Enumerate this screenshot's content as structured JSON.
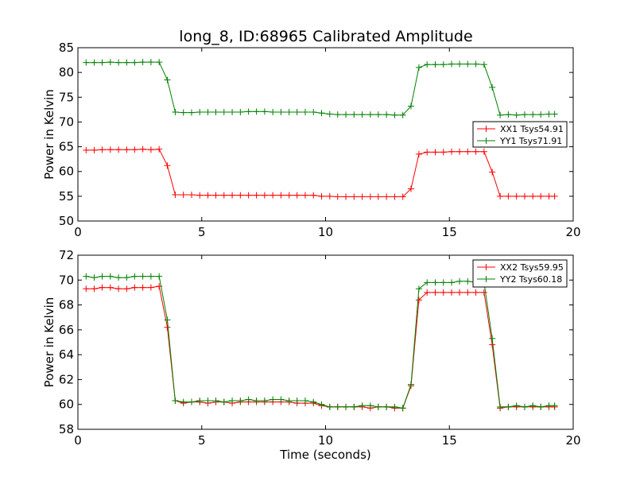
{
  "figure": {
    "title": "long_8, ID:68965 Calibrated Amplitude"
  },
  "chart_data": [
    {
      "type": "line",
      "title": "long_8, ID:68965 Calibrated Amplitude",
      "xlabel": "",
      "ylabel": "Power in Kelvin",
      "xlim": [
        0,
        20
      ],
      "ylim": [
        50,
        85
      ],
      "xticks": [
        "0",
        "5",
        "10",
        "15",
        "20"
      ],
      "yticks": [
        "50",
        "55",
        "60",
        "65",
        "70",
        "75",
        "80",
        "85"
      ],
      "legend_position": "center-right",
      "grid": false,
      "x": [
        0.33,
        0.66,
        0.98,
        1.31,
        1.64,
        1.97,
        2.29,
        2.62,
        2.95,
        3.28,
        3.61,
        3.93,
        4.26,
        4.59,
        4.92,
        5.25,
        5.57,
        5.9,
        6.23,
        6.56,
        6.89,
        7.21,
        7.54,
        7.87,
        8.2,
        8.53,
        8.85,
        9.18,
        9.51,
        9.84,
        10.17,
        10.49,
        10.82,
        11.15,
        11.48,
        11.81,
        12.13,
        12.46,
        12.79,
        13.12,
        13.45,
        13.77,
        14.1,
        14.43,
        14.76,
        15.09,
        15.41,
        15.74,
        16.07,
        16.4,
        16.73,
        17.05,
        17.38,
        17.71,
        18.04,
        18.37,
        18.69,
        19.02,
        19.25
      ],
      "series": [
        {
          "name": "XX1 Tsys54.91",
          "color": "#ff0000",
          "values": [
            64.3,
            64.3,
            64.4,
            64.4,
            64.4,
            64.4,
            64.4,
            64.5,
            64.4,
            64.5,
            61.2,
            55.3,
            55.3,
            55.3,
            55.2,
            55.2,
            55.2,
            55.2,
            55.2,
            55.2,
            55.2,
            55.2,
            55.2,
            55.2,
            55.2,
            55.2,
            55.2,
            55.2,
            55.2,
            55.0,
            55.0,
            54.9,
            54.9,
            54.9,
            54.9,
            54.9,
            54.9,
            54.9,
            54.9,
            54.9,
            56.5,
            63.5,
            63.9,
            63.9,
            63.9,
            64.0,
            64.0,
            64.0,
            64.0,
            64.0,
            59.9,
            55.0,
            55.0,
            55.0,
            55.0,
            55.0,
            55.0,
            55.0,
            55.0
          ]
        },
        {
          "name": "YY1 Tsys71.91",
          "color": "#008000",
          "values": [
            82.0,
            82.0,
            82.0,
            82.1,
            82.0,
            82.0,
            82.0,
            82.1,
            82.1,
            82.1,
            78.5,
            72.0,
            71.9,
            71.9,
            72.0,
            72.0,
            72.0,
            72.0,
            72.0,
            72.0,
            72.1,
            72.1,
            72.1,
            72.0,
            72.0,
            72.0,
            72.0,
            72.0,
            72.0,
            71.8,
            71.6,
            71.5,
            71.5,
            71.5,
            71.5,
            71.5,
            71.5,
            71.5,
            71.4,
            71.4,
            73.2,
            81.0,
            81.6,
            81.6,
            81.6,
            81.7,
            81.7,
            81.7,
            81.7,
            81.6,
            77.0,
            71.4,
            71.5,
            71.4,
            71.5,
            71.5,
            71.5,
            71.6,
            71.6
          ]
        }
      ]
    },
    {
      "type": "line",
      "title": "",
      "xlabel": "Time (seconds)",
      "ylabel": "Power in Kelvin",
      "xlim": [
        0,
        20
      ],
      "ylim": [
        58,
        72
      ],
      "xticks": [
        "0",
        "5",
        "10",
        "15",
        "20"
      ],
      "yticks": [
        "58",
        "60",
        "62",
        "64",
        "66",
        "68",
        "70",
        "72"
      ],
      "legend_position": "top-right",
      "grid": false,
      "x": [
        0.33,
        0.66,
        0.98,
        1.31,
        1.64,
        1.97,
        2.29,
        2.62,
        2.95,
        3.28,
        3.61,
        3.93,
        4.26,
        4.59,
        4.92,
        5.25,
        5.57,
        5.9,
        6.23,
        6.56,
        6.89,
        7.21,
        7.54,
        7.87,
        8.2,
        8.53,
        8.85,
        9.18,
        9.51,
        9.84,
        10.17,
        10.49,
        10.82,
        11.15,
        11.48,
        11.81,
        12.13,
        12.46,
        12.79,
        13.12,
        13.45,
        13.77,
        14.1,
        14.43,
        14.76,
        15.09,
        15.41,
        15.74,
        16.07,
        16.4,
        16.73,
        17.05,
        17.38,
        17.71,
        18.04,
        18.37,
        18.69,
        19.02,
        19.25
      ],
      "series": [
        {
          "name": "XX2 Tsys59.95",
          "color": "#ff0000",
          "values": [
            69.3,
            69.3,
            69.4,
            69.4,
            69.3,
            69.3,
            69.4,
            69.4,
            69.4,
            69.5,
            66.2,
            60.3,
            60.1,
            60.2,
            60.2,
            60.1,
            60.2,
            60.2,
            60.1,
            60.2,
            60.2,
            60.2,
            60.2,
            60.2,
            60.2,
            60.2,
            60.1,
            60.1,
            60.1,
            59.9,
            59.8,
            59.8,
            59.8,
            59.8,
            59.8,
            59.7,
            59.8,
            59.8,
            59.7,
            59.7,
            61.5,
            68.4,
            69.0,
            69.0,
            69.0,
            69.0,
            69.0,
            69.0,
            69.0,
            69.0,
            64.8,
            59.7,
            59.8,
            59.8,
            59.8,
            59.8,
            59.8,
            59.8,
            59.8
          ]
        },
        {
          "name": "YY2 Tsys60.18",
          "color": "#008000",
          "values": [
            70.3,
            70.2,
            70.3,
            70.3,
            70.2,
            70.2,
            70.3,
            70.3,
            70.3,
            70.3,
            66.8,
            60.3,
            60.2,
            60.2,
            60.3,
            60.3,
            60.3,
            60.2,
            60.3,
            60.3,
            60.4,
            60.3,
            60.3,
            60.4,
            60.4,
            60.3,
            60.3,
            60.3,
            60.2,
            60.0,
            59.8,
            59.8,
            59.8,
            59.8,
            59.9,
            59.9,
            59.8,
            59.8,
            59.8,
            59.7,
            61.6,
            69.3,
            69.8,
            69.8,
            69.8,
            69.8,
            69.9,
            69.9,
            69.8,
            69.8,
            65.3,
            59.8,
            59.8,
            59.9,
            59.8,
            59.9,
            59.8,
            59.9,
            59.9
          ]
        }
      ]
    }
  ]
}
